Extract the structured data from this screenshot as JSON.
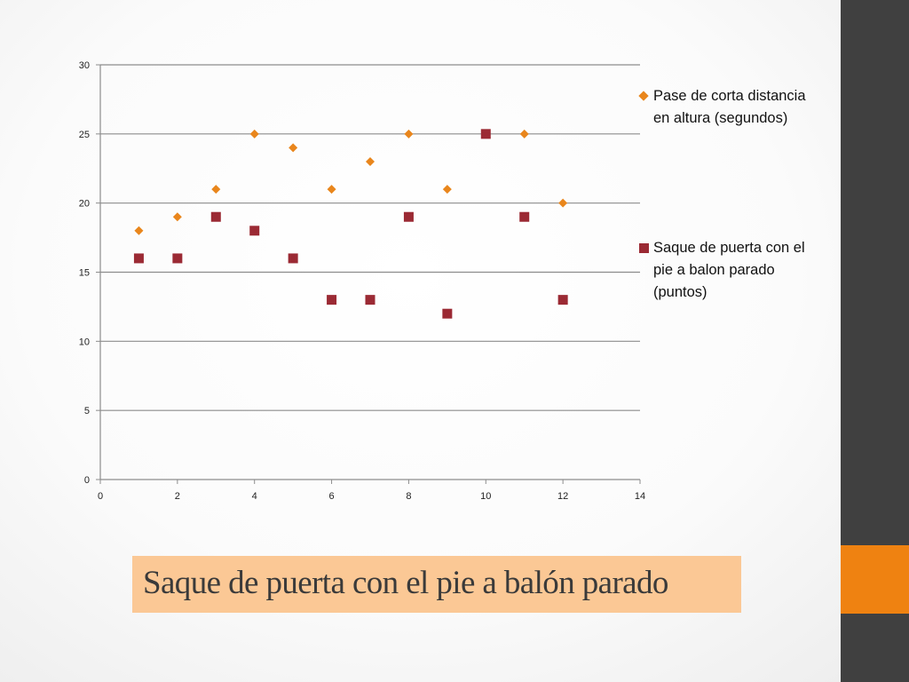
{
  "chart_data": {
    "type": "scatter",
    "title": "",
    "xlabel": "",
    "ylabel": "",
    "xlim": [
      0,
      14
    ],
    "ylim": [
      0,
      30
    ],
    "x_ticks": [
      "0",
      "2",
      "4",
      "6",
      "8",
      "10",
      "12",
      "14"
    ],
    "y_ticks": [
      "0",
      "5",
      "10",
      "15",
      "20",
      "25",
      "30"
    ],
    "grid": "horizontal",
    "legend_position": "right",
    "series": [
      {
        "name": "Pase de corta distancia en altura (segundos)",
        "marker": "diamond",
        "color": "#E9861C",
        "points": [
          [
            1,
            18
          ],
          [
            2,
            19
          ],
          [
            3,
            21
          ],
          [
            4,
            25
          ],
          [
            5,
            24
          ],
          [
            6,
            21
          ],
          [
            7,
            23
          ],
          [
            8,
            25
          ],
          [
            9,
            21
          ],
          [
            11,
            25
          ],
          [
            12,
            20
          ]
        ]
      },
      {
        "name": "Saque de puerta con el pie  a balon parado  (puntos)",
        "marker": "square",
        "color": "#9B2A34",
        "points": [
          [
            1,
            16
          ],
          [
            2,
            16
          ],
          [
            3,
            19
          ],
          [
            4,
            18
          ],
          [
            5,
            16
          ],
          [
            6,
            13
          ],
          [
            7,
            13
          ],
          [
            8,
            19
          ],
          [
            9,
            12
          ],
          [
            10,
            25
          ],
          [
            11,
            19
          ],
          [
            12,
            13
          ]
        ]
      }
    ]
  },
  "legend": {
    "entry1": "Pase de corta distancia en altura (segundos)",
    "entry2": "Saque de puerta con el pie  a balon parado  (puntos)"
  },
  "slide": {
    "title": "Saque de puerta con el pie  a balón parado"
  },
  "colors": {
    "sidebar": "#404040",
    "accent": "#EF8211",
    "title_box": "#FBC895"
  }
}
